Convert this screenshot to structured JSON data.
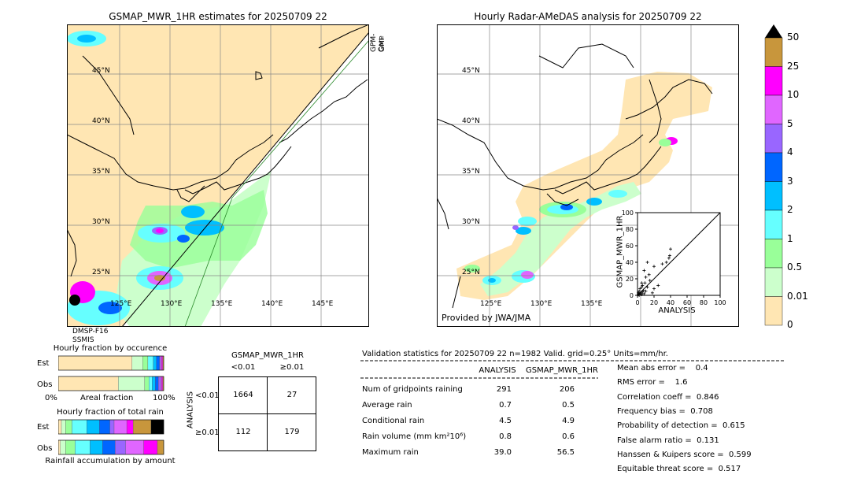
{
  "left_map": {
    "title": "GSMAP_MWR_1HR estimates for 20250709 22",
    "lat_labels": [
      "45°N",
      "40°N",
      "35°N",
      "30°N",
      "25°N"
    ],
    "lon_labels": [
      "125°E",
      "130°E",
      "135°E",
      "140°E",
      "145°E"
    ],
    "sensor_top_right": [
      "GPM-Core",
      "GMI"
    ],
    "sensor_bottom_left": [
      "DMSP-F16",
      "SSMIS"
    ]
  },
  "right_map": {
    "title": "Hourly Radar-AMeDAS analysis for 20250709 22",
    "lat_labels": [
      "45°N",
      "40°N",
      "35°N",
      "30°N",
      "25°N"
    ],
    "lon_labels": [
      "125°E",
      "130°E",
      "135°E"
    ],
    "credit": "Provided by JWA/JMA"
  },
  "colorbar": {
    "labels": [
      "50",
      "25",
      "10",
      "5",
      "4",
      "3",
      "2",
      "1",
      "0.5",
      "0.01",
      "0"
    ],
    "colors": [
      "#c8963c",
      "#ff00ff",
      "#e066ff",
      "#9966ff",
      "#0066ff",
      "#00bfff",
      "#66ffff",
      "#99ff99",
      "#ccffcc",
      "#ffe6b3"
    ]
  },
  "chart_data": [
    {
      "type": "scatter",
      "title": "",
      "xlabel": "ANALYSIS",
      "ylabel": "GSMAP_MWR_1HR",
      "xlim": [
        0,
        100
      ],
      "ylim": [
        0,
        100
      ],
      "xticks": [
        "0",
        "20",
        "40",
        "60",
        "80",
        "100"
      ],
      "yticks": [
        "0",
        "20",
        "40",
        "60",
        "80",
        "100"
      ],
      "points": [
        [
          1,
          1
        ],
        [
          2,
          0
        ],
        [
          3,
          2
        ],
        [
          2,
          5
        ],
        [
          4,
          3
        ],
        [
          5,
          1
        ],
        [
          6,
          4
        ],
        [
          3,
          8
        ],
        [
          5,
          10
        ],
        [
          7,
          6
        ],
        [
          8,
          2
        ],
        [
          10,
          5
        ],
        [
          6,
          12
        ],
        [
          9,
          15
        ],
        [
          12,
          10
        ],
        [
          15,
          18
        ],
        [
          18,
          3
        ],
        [
          20,
          8
        ],
        [
          10,
          22
        ],
        [
          14,
          25
        ],
        [
          8,
          30
        ],
        [
          20,
          35
        ],
        [
          30,
          38
        ],
        [
          35,
          40
        ],
        [
          38,
          45
        ],
        [
          39,
          48
        ],
        [
          40,
          56
        ],
        [
          12,
          40
        ],
        [
          5,
          15
        ],
        [
          25,
          12
        ],
        [
          1,
          3
        ],
        [
          2,
          2
        ]
      ]
    },
    {
      "type": "bar",
      "title": "Hourly fraction by occurence",
      "categories": [
        "Est",
        "Obs"
      ],
      "xlabel": "Areal fraction",
      "xticks": [
        "0%",
        "100%"
      ],
      "segments": {
        "Est": [
          {
            "v": 0.7,
            "c": "#ffe6b3"
          },
          {
            "v": 0.1,
            "c": "#ccffcc"
          },
          {
            "v": 0.05,
            "c": "#99ff99"
          },
          {
            "v": 0.05,
            "c": "#66ffff"
          },
          {
            "v": 0.03,
            "c": "#00bfff"
          },
          {
            "v": 0.03,
            "c": "#0066ff"
          },
          {
            "v": 0.01,
            "c": "#9966ff"
          },
          {
            "v": 0.01,
            "c": "#e066ff"
          },
          {
            "v": 0.01,
            "c": "#ff00ff"
          },
          {
            "v": 0.01,
            "c": "#c8963c"
          }
        ],
        "Obs": [
          {
            "v": 0.57,
            "c": "#ffe6b3"
          },
          {
            "v": 0.25,
            "c": "#ccffcc"
          },
          {
            "v": 0.04,
            "c": "#99ff99"
          },
          {
            "v": 0.03,
            "c": "#66ffff"
          },
          {
            "v": 0.03,
            "c": "#00bfff"
          },
          {
            "v": 0.03,
            "c": "#0066ff"
          },
          {
            "v": 0.02,
            "c": "#9966ff"
          },
          {
            "v": 0.01,
            "c": "#e066ff"
          },
          {
            "v": 0.01,
            "c": "#ff00ff"
          },
          {
            "v": 0.01,
            "c": "#c8963c"
          }
        ]
      }
    },
    {
      "type": "bar",
      "title": "Hourly fraction of total rain",
      "categories": [
        "Est",
        "Obs"
      ],
      "xlabel": "Rainfall accumulation by amount",
      "segments": {
        "Est": [
          {
            "v": 0.03,
            "c": "#ffe6b3"
          },
          {
            "v": 0.04,
            "c": "#ccffcc"
          },
          {
            "v": 0.06,
            "c": "#99ff99"
          },
          {
            "v": 0.14,
            "c": "#66ffff"
          },
          {
            "v": 0.12,
            "c": "#00bfff"
          },
          {
            "v": 0.1,
            "c": "#0066ff"
          },
          {
            "v": 0.04,
            "c": "#9966ff"
          },
          {
            "v": 0.12,
            "c": "#e066ff"
          },
          {
            "v": 0.06,
            "c": "#ff00ff"
          },
          {
            "v": 0.17,
            "c": "#c8963c"
          },
          {
            "v": 0.12,
            "c": "#000000"
          }
        ],
        "Obs": [
          {
            "v": 0.02,
            "c": "#ffe6b3"
          },
          {
            "v": 0.05,
            "c": "#ccffcc"
          },
          {
            "v": 0.09,
            "c": "#99ff99"
          },
          {
            "v": 0.14,
            "c": "#66ffff"
          },
          {
            "v": 0.12,
            "c": "#00bfff"
          },
          {
            "v": 0.12,
            "c": "#0066ff"
          },
          {
            "v": 0.1,
            "c": "#9966ff"
          },
          {
            "v": 0.17,
            "c": "#e066ff"
          },
          {
            "v": 0.13,
            "c": "#ff00ff"
          },
          {
            "v": 0.06,
            "c": "#c8963c"
          }
        ]
      }
    },
    {
      "type": "table",
      "title": "GSMAP_MWR_1HR",
      "col_headers": [
        "<0.01",
        "≥0.01"
      ],
      "row_axis_label": "ANALYSIS",
      "row_headers": [
        "<0.01",
        "≥0.01"
      ],
      "cells": [
        [
          "1664",
          "27"
        ],
        [
          "112",
          "179"
        ]
      ]
    }
  ],
  "validation": {
    "header": "Validation statistics for 20250709 22  n=1982 Valid. grid=0.25° Units=mm/hr.",
    "col_analysis": "ANALYSIS",
    "col_gsmap": "GSMAP_MWR_1HR",
    "rows": [
      {
        "label": "Num of gridpoints raining",
        "a": "291",
        "g": "206"
      },
      {
        "label": "Average rain",
        "a": "0.7",
        "g": "0.5"
      },
      {
        "label": "Conditional rain",
        "a": "4.5",
        "g": "4.9"
      },
      {
        "label": "Rain volume (mm km²10⁶)",
        "a": "0.8",
        "g": "0.6"
      },
      {
        "label": "Maximum rain",
        "a": "39.0",
        "g": "56.5"
      }
    ],
    "scores": [
      "Mean abs error =    0.4",
      "RMS error =    1.6",
      "Correlation coeff =  0.846",
      "Frequency bias =  0.708",
      "Probability of detection =  0.615",
      "False alarm ratio =  0.131",
      "Hanssen & Kuipers score =  0.599",
      "Equitable threat score =  0.517"
    ]
  }
}
